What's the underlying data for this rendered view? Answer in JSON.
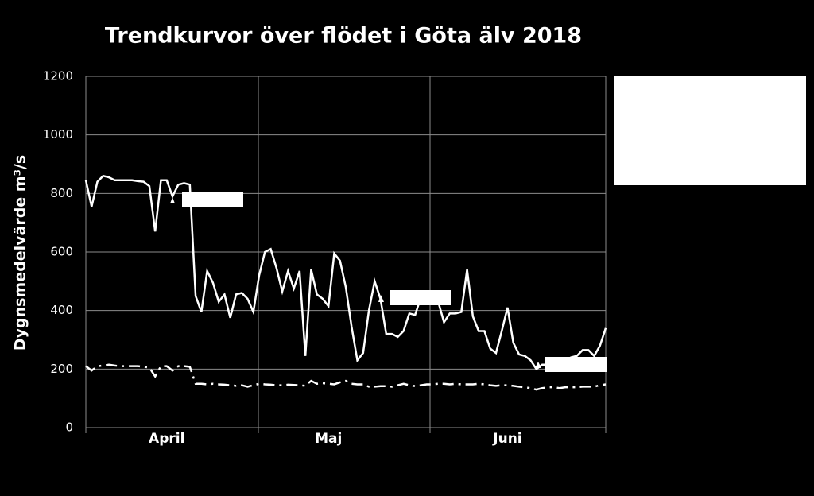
{
  "chart_data": {
    "type": "line",
    "title": "Trendkurvor över flödet i Göta älv 2018",
    "y_label": "Dygnsmedelvärde m³/s",
    "categories": [
      null,
      null,
      null,
      null,
      null,
      null,
      null,
      null,
      null,
      null,
      null,
      null,
      null,
      null,
      "April",
      null,
      null,
      null,
      null,
      null,
      null,
      null,
      null,
      null,
      null,
      null,
      null,
      null,
      null,
      null,
      null,
      null,
      null,
      null,
      null,
      null,
      null,
      null,
      null,
      null,
      null,
      null,
      "Maj",
      null,
      null,
      null,
      null,
      null,
      null,
      null,
      null,
      null,
      null,
      null,
      null,
      null,
      null,
      null,
      null,
      null,
      null,
      null,
      null,
      null,
      null,
      null,
      null,
      null,
      null,
      null,
      null,
      null,
      null,
      "Juni",
      null,
      null,
      null,
      null,
      null,
      null,
      null,
      null,
      null,
      null,
      null,
      null,
      null,
      null,
      null,
      null,
      null
    ],
    "series": [
      {
        "color": "#ffffff",
        "line_style": "solid",
        "values": [
          845,
          755,
          840,
          860,
          855,
          845,
          845,
          845,
          845,
          842,
          840,
          825,
          670,
          845,
          845,
          790,
          830,
          835,
          830,
          450,
          395,
          535,
          495,
          430,
          455,
          375,
          455,
          460,
          440,
          395,
          520,
          600,
          610,
          545,
          465,
          535,
          475,
          535,
          245,
          540,
          455,
          440,
          415,
          595,
          570,
          480,
          345,
          230,
          255,
          400,
          500,
          440,
          320,
          320,
          310,
          330,
          390,
          385,
          445,
          440,
          440,
          430,
          360,
          390,
          390,
          395,
          540,
          380,
          330,
          330,
          270,
          255,
          330,
          410,
          290,
          250,
          245,
          230,
          200,
          215,
          215,
          220,
          225,
          230,
          240,
          245,
          265,
          265,
          245,
          280,
          340
        ]
      },
      {
        "color": "#ffffff",
        "line_style": "dashdot",
        "values": [
          210,
          195,
          210,
          212,
          215,
          212,
          210,
          210,
          210,
          210,
          208,
          205,
          175,
          210,
          210,
          195,
          210,
          210,
          208,
          150,
          150,
          148,
          150,
          148,
          147,
          145,
          143,
          145,
          140,
          145,
          150,
          148,
          147,
          145,
          145,
          147,
          146,
          145,
          143,
          160,
          150,
          152,
          150,
          148,
          155,
          160,
          150,
          148,
          148,
          140,
          140,
          142,
          142,
          140,
          145,
          150,
          145,
          142,
          145,
          148,
          148,
          150,
          150,
          148,
          150,
          148,
          148,
          148,
          150,
          148,
          145,
          143,
          145,
          145,
          143,
          140,
          138,
          135,
          130,
          135,
          138,
          138,
          135,
          138,
          138,
          138,
          140,
          140,
          140,
          145,
          148
        ]
      }
    ],
    "ylim": [
      0,
      1200
    ],
    "yticks": [
      0,
      200,
      400,
      600,
      800,
      1000,
      1200
    ],
    "grid": true
  }
}
